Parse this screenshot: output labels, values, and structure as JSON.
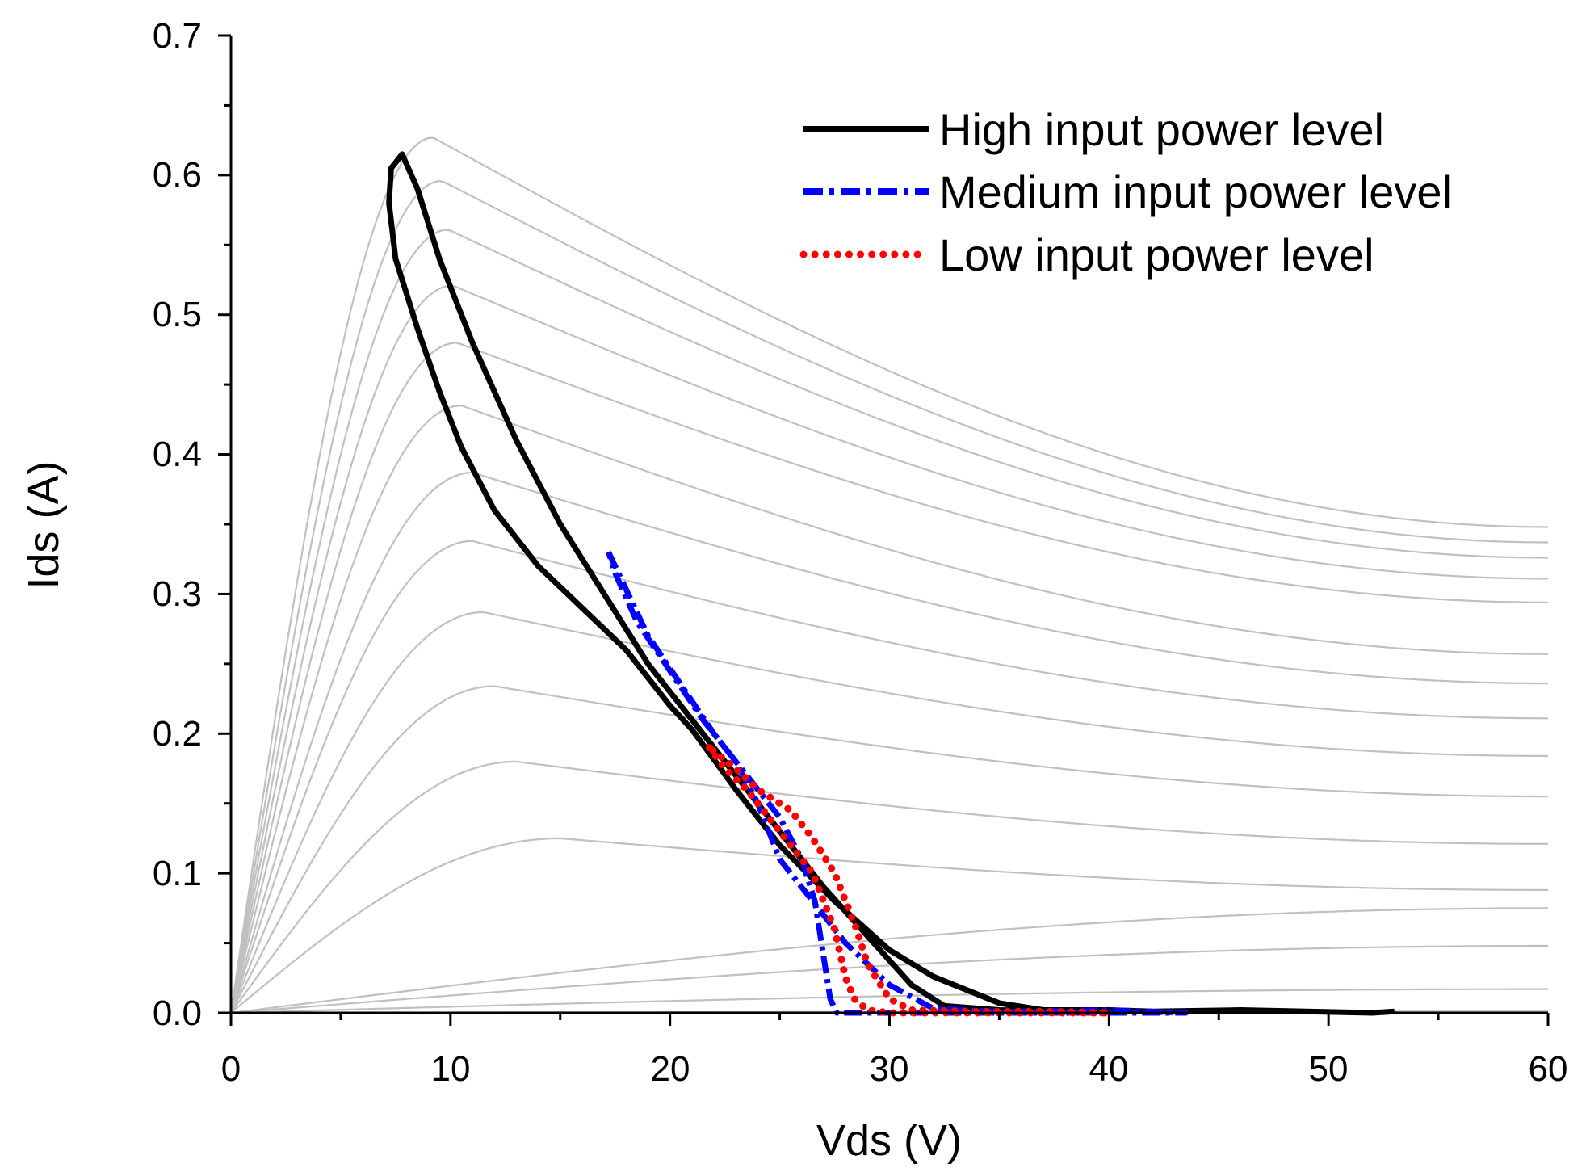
{
  "chart_data": {
    "type": "line",
    "title": "",
    "xlabel": "Vds (V)",
    "ylabel": "Ids (A)",
    "xlim": [
      0,
      60
    ],
    "ylim": [
      0,
      0.7
    ],
    "x_ticks": [
      "0",
      "10",
      "20",
      "30",
      "40",
      "50",
      "60"
    ],
    "y_ticks": [
      "0.0",
      "0.1",
      "0.2",
      "0.3",
      "0.4",
      "0.5",
      "0.6",
      "0.7"
    ],
    "legend_position": "top-right",
    "background_curves": {
      "name": "IV characteristics",
      "color": "#c0c0c0",
      "curves": [
        {
          "peak_x": 9.2,
          "peak_y": 0.627,
          "end_y": 0.348
        },
        {
          "peak_x": 9.6,
          "peak_y": 0.596,
          "end_y": 0.337
        },
        {
          "peak_x": 9.9,
          "peak_y": 0.561,
          "end_y": 0.326
        },
        {
          "peak_x": 10.1,
          "peak_y": 0.521,
          "end_y": 0.311
        },
        {
          "peak_x": 10.3,
          "peak_y": 0.48,
          "end_y": 0.294
        },
        {
          "peak_x": 10.5,
          "peak_y": 0.435,
          "end_y": 0.257
        },
        {
          "peak_x": 11.0,
          "peak_y": 0.387,
          "end_y": 0.236
        },
        {
          "peak_x": 11.0,
          "peak_y": 0.338,
          "end_y": 0.211
        },
        {
          "peak_x": 11.5,
          "peak_y": 0.287,
          "end_y": 0.184
        },
        {
          "peak_x": 12.0,
          "peak_y": 0.234,
          "end_y": 0.155
        },
        {
          "peak_x": 13.0,
          "peak_y": 0.18,
          "end_y": 0.121
        },
        {
          "peak_x": 15.0,
          "peak_y": 0.125,
          "end_y": 0.088
        },
        {
          "peak_x": 60.0,
          "peak_y": 0.075,
          "end_y": 0.075
        },
        {
          "peak_x": 60.0,
          "peak_y": 0.048,
          "end_y": 0.048
        },
        {
          "peak_x": 60.0,
          "peak_y": 0.017,
          "end_y": 0.017
        },
        {
          "peak_x": 60.0,
          "peak_y": 0.001,
          "end_y": 0.001
        }
      ]
    },
    "series": [
      {
        "name": "High input power level",
        "color": "#000000",
        "style": "solid",
        "points": [
          [
            53.0,
            0.001
          ],
          [
            52.0,
            0.0
          ],
          [
            46.0,
            0.002
          ],
          [
            42.0,
            0.001
          ],
          [
            40.0,
            0.002
          ],
          [
            37.0,
            0.002
          ],
          [
            35.0,
            0.007
          ],
          [
            32.0,
            0.026
          ],
          [
            30.0,
            0.045
          ],
          [
            27.5,
            0.08
          ],
          [
            25.0,
            0.12
          ],
          [
            23.0,
            0.16
          ],
          [
            21.0,
            0.203
          ],
          [
            20.0,
            0.22
          ],
          [
            18.0,
            0.26
          ],
          [
            16.0,
            0.29
          ],
          [
            14.0,
            0.32
          ],
          [
            12.0,
            0.36
          ],
          [
            10.5,
            0.405
          ],
          [
            9.5,
            0.445
          ],
          [
            8.5,
            0.49
          ],
          [
            7.5,
            0.54
          ],
          [
            7.2,
            0.58
          ],
          [
            7.3,
            0.605
          ],
          [
            7.8,
            0.615
          ],
          [
            8.5,
            0.59
          ],
          [
            9.5,
            0.54
          ],
          [
            11.0,
            0.48
          ],
          [
            13.0,
            0.41
          ],
          [
            15.0,
            0.35
          ],
          [
            17.0,
            0.3
          ],
          [
            19.0,
            0.25
          ],
          [
            21.0,
            0.21
          ],
          [
            23.0,
            0.17
          ],
          [
            25.0,
            0.13
          ],
          [
            27.0,
            0.09
          ],
          [
            29.0,
            0.055
          ],
          [
            31.0,
            0.02
          ],
          [
            32.5,
            0.005
          ],
          [
            35.0,
            0.002
          ],
          [
            40.0,
            0.001
          ]
        ]
      },
      {
        "name": "Medium input power level",
        "color": "#0000ff",
        "style": "dash-dot",
        "points": [
          [
            17.2,
            0.33
          ],
          [
            17.8,
            0.31
          ],
          [
            19.0,
            0.27
          ],
          [
            20.5,
            0.235
          ],
          [
            22.0,
            0.2
          ],
          [
            23.5,
            0.17
          ],
          [
            25.0,
            0.14
          ],
          [
            26.0,
            0.11
          ],
          [
            26.6,
            0.08
          ],
          [
            27.0,
            0.04
          ],
          [
            27.3,
            0.01
          ],
          [
            27.6,
            0.0
          ],
          [
            28.5,
            0.0
          ],
          [
            30.0,
            0.0
          ],
          [
            35.0,
            0.0
          ],
          [
            40.0,
            0.0
          ],
          [
            43.5,
            0.0
          ],
          [
            40.0,
            0.002
          ],
          [
            35.0,
            0.001
          ],
          [
            32.0,
            0.003
          ],
          [
            30.0,
            0.02
          ],
          [
            28.0,
            0.05
          ],
          [
            26.0,
            0.09
          ],
          [
            25.0,
            0.11
          ],
          [
            24.0,
            0.15
          ],
          [
            23.0,
            0.18
          ],
          [
            21.5,
            0.21
          ],
          [
            20.0,
            0.245
          ],
          [
            18.5,
            0.28
          ],
          [
            17.5,
            0.315
          ],
          [
            17.2,
            0.33
          ]
        ]
      },
      {
        "name": "Low input power level",
        "color": "#ff0000",
        "style": "dotted",
        "points": [
          [
            21.8,
            0.19
          ],
          [
            22.5,
            0.175
          ],
          [
            23.5,
            0.16
          ],
          [
            24.5,
            0.14
          ],
          [
            25.5,
            0.12
          ],
          [
            26.5,
            0.1
          ],
          [
            27.5,
            0.06
          ],
          [
            28.0,
            0.025
          ],
          [
            28.4,
            0.01
          ],
          [
            29.0,
            0.002
          ],
          [
            30.0,
            0.0
          ],
          [
            33.0,
            0.0
          ],
          [
            38.0,
            0.0
          ],
          [
            40.0,
            0.0
          ],
          [
            37.0,
            0.001
          ],
          [
            34.0,
            0.001
          ],
          [
            31.0,
            0.002
          ],
          [
            30.0,
            0.01
          ],
          [
            29.0,
            0.035
          ],
          [
            28.5,
            0.06
          ],
          [
            27.5,
            0.1
          ],
          [
            26.5,
            0.125
          ],
          [
            25.5,
            0.145
          ],
          [
            24.0,
            0.16
          ],
          [
            23.0,
            0.175
          ],
          [
            21.8,
            0.19
          ]
        ]
      }
    ]
  }
}
